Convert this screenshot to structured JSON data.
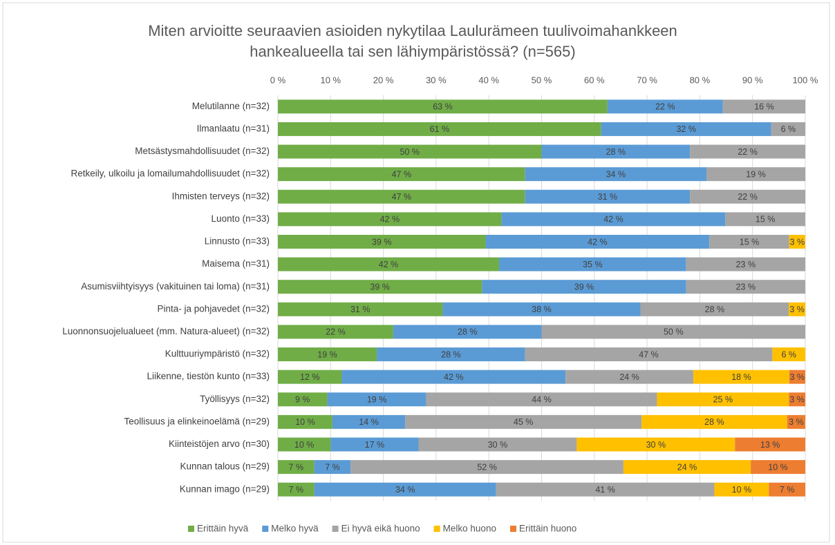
{
  "chart_data": {
    "type": "stacked-bar-horizontal",
    "title": [
      "Miten arvioitte seuraavien asioiden nykytilaa Laulurämeen tuulivoimahankkeen",
      "hankealueella tai sen lähiympäristössä? (n=565)"
    ],
    "categories": [
      "Melutilanne (n=32)",
      "Ilmanlaatu (n=31)",
      "Metsästysmahdollisuudet (n=32)",
      "Retkeily, ulkoilu ja lomailumahdollisuudet (n=32)",
      "Ihmisten terveys (n=32)",
      "Luonto (n=33)",
      "Linnusto (n=33)",
      "Maisema (n=31)",
      "Asumisviihtyisyys (vakituinen tai loma) (n=31)",
      "Pinta- ja pohjavedet (n=32)",
      "Luonnonsuojelualueet (mm. Natura-alueet) (n=32)",
      "Kulttuuriympäristö (n=32)",
      "Liikenne, tiestön kunto (n=33)",
      "Työllisyys (n=32)",
      "Teollisuus ja elinkeinoelämä (n=29)",
      "Kiinteistöjen arvo (n=30)",
      "Kunnan talous (n=29)",
      "Kunnan imago (n=29)"
    ],
    "series": [
      {
        "name": "Erittäin hyvä",
        "color": "#70ad47",
        "values": [
          62.5,
          61.29,
          50,
          46.88,
          46.88,
          42.42,
          39.39,
          41.94,
          38.71,
          31.25,
          21.88,
          18.75,
          12.12,
          9.38,
          10.34,
          10,
          6.9,
          6.9
        ],
        "value_labels": [
          "63 %",
          "61 %",
          "50 %",
          "47 %",
          "47 %",
          "42 %",
          "39 %",
          "42 %",
          "39 %",
          "31 %",
          "22 %",
          "19 %",
          "12 %",
          "9 %",
          "10 %",
          "10 %",
          "7 %",
          "7 %"
        ]
      },
      {
        "name": "Melko hyvä",
        "color": "#5b9bd5",
        "values": [
          21.88,
          32.26,
          28.13,
          34.38,
          31.25,
          42.42,
          42.42,
          35.48,
          38.71,
          37.5,
          28.13,
          28.13,
          42.42,
          18.75,
          13.79,
          16.67,
          6.9,
          34.48
        ],
        "value_labels": [
          "22 %",
          "32 %",
          "28 %",
          "34 %",
          "31 %",
          "42 %",
          "42 %",
          "35 %",
          "39 %",
          "38 %",
          "28 %",
          "28 %",
          "42 %",
          "19 %",
          "14 %",
          "17 %",
          "7 %",
          "34 %"
        ]
      },
      {
        "name": "Ei hyvä eikä huono",
        "color": "#a5a5a5",
        "values": [
          15.63,
          6.45,
          21.88,
          18.75,
          21.88,
          15.15,
          15.15,
          22.58,
          22.58,
          28.13,
          50,
          46.88,
          24.24,
          43.75,
          44.83,
          30,
          51.72,
          41.38
        ],
        "value_labels": [
          "16 %",
          "6 %",
          "22 %",
          "19 %",
          "22 %",
          "15 %",
          "15 %",
          "23 %",
          "23 %",
          "28 %",
          "50 %",
          "47 %",
          "24 %",
          "44 %",
          "45 %",
          "30 %",
          "52 %",
          "41 %"
        ]
      },
      {
        "name": "Melko huono",
        "color": "#ffc000",
        "values": [
          0,
          0,
          0,
          0,
          0,
          0,
          3.03,
          0,
          0,
          3.13,
          0,
          6.25,
          18.18,
          25,
          27.59,
          30,
          24.14,
          10.34
        ],
        "value_labels": [
          null,
          null,
          null,
          null,
          null,
          null,
          "3 %",
          null,
          null,
          "3 %",
          null,
          "6 %",
          "18 %",
          "25 %",
          "28 %",
          "30 %",
          "24 %",
          "10 %"
        ]
      },
      {
        "name": "Erittäin huono",
        "color": "#ed7d31",
        "values": [
          0,
          0,
          0,
          0,
          0,
          0,
          0,
          0,
          0,
          0,
          0,
          0,
          3.03,
          3.13,
          3.45,
          13.33,
          10.34,
          6.9
        ],
        "value_labels": [
          null,
          null,
          null,
          null,
          null,
          null,
          null,
          null,
          null,
          null,
          null,
          null,
          "3 %",
          "3 %",
          "3 %",
          "13 %",
          "10 %",
          "7 %"
        ]
      }
    ],
    "xlim": [
      0,
      100
    ],
    "xticks": [
      {
        "value": 0,
        "label": "0 %"
      },
      {
        "value": 10,
        "label": "10 %"
      },
      {
        "value": 20,
        "label": "20 %"
      },
      {
        "value": 30,
        "label": "30 %"
      },
      {
        "value": 40,
        "label": "40 %"
      },
      {
        "value": 50,
        "label": "50 %"
      },
      {
        "value": 60,
        "label": "60 %"
      },
      {
        "value": 70,
        "label": "70 %"
      },
      {
        "value": 80,
        "label": "80 %"
      },
      {
        "value": 90,
        "label": "90 %"
      },
      {
        "value": 100,
        "label": "100 %"
      }
    ],
    "grid": true,
    "legend": "bottom"
  }
}
